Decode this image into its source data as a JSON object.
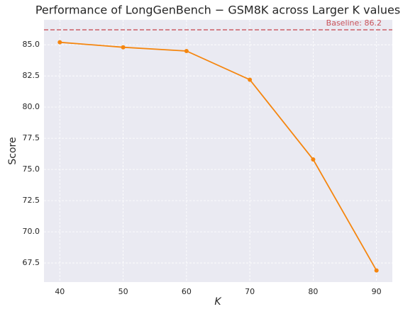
{
  "chart_data": {
    "type": "line",
    "title": "Performance of LongGenBench − GSM8K across Larger K values",
    "x_label": "K",
    "y_label": "Score",
    "x": [
      40,
      50,
      60,
      70,
      80,
      90
    ],
    "series": [
      {
        "name": "Score",
        "color": "#f5860f",
        "values": [
          85.2,
          84.8,
          84.5,
          82.2,
          75.8,
          66.9
        ]
      }
    ],
    "baseline": {
      "value": 86.2,
      "label": "Baseline: 86.2",
      "color": "#c9525a"
    },
    "xlim": [
      37.5,
      92.5
    ],
    "ylim": [
      65.97,
      87.0
    ],
    "xticks": [
      40,
      50,
      60,
      70,
      80,
      90
    ],
    "yticks": [
      {
        "value": 67.5,
        "label": "67.5"
      },
      {
        "value": 70,
        "label": "70.0"
      },
      72.5,
      {
        "value": 75,
        "label": "75.0"
      },
      77.5,
      {
        "value": 80,
        "label": "80.0"
      },
      82.5,
      {
        "value": 85,
        "label": "85.0"
      }
    ],
    "grid": true
  }
}
